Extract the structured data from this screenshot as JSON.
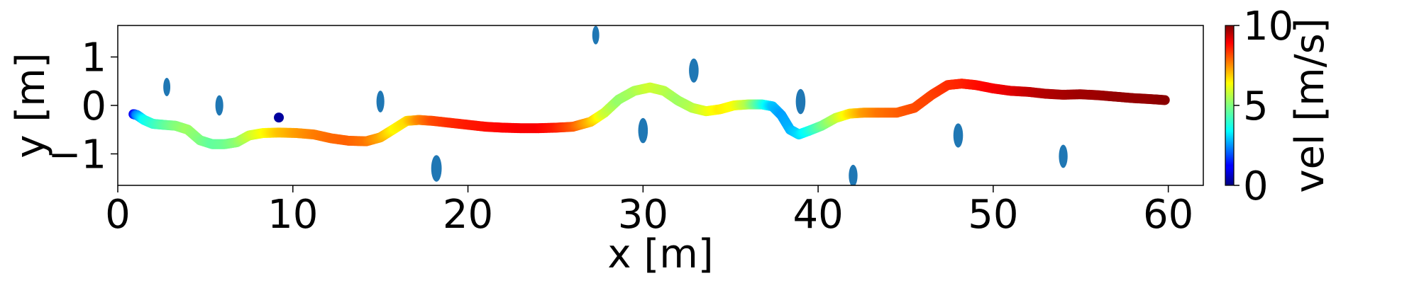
{
  "chart_data": {
    "type": "scatter",
    "xlabel": "x [m]",
    "ylabel": "y [m]",
    "xlim": [
      0,
      62
    ],
    "ylim": [
      -1.65,
      1.65
    ],
    "xticks": [
      0,
      10,
      20,
      30,
      40,
      50,
      60
    ],
    "yticks": [
      -1,
      0,
      1
    ],
    "xtick_labels": [
      "0",
      "10",
      "20",
      "30",
      "40",
      "50",
      "60"
    ],
    "ytick_labels": [
      "−1",
      "0",
      "1"
    ],
    "colorbar": {
      "label": "vel [m/s]",
      "range": [
        0,
        10
      ],
      "ticks": [
        0,
        5,
        10
      ],
      "tick_labels": [
        "0",
        "5",
        "10"
      ],
      "colormap": "jet"
    },
    "trajectory": {
      "x": [
        0.9,
        1.1,
        1.5,
        2.0,
        2.6,
        3.3,
        4.0,
        4.7,
        5.4,
        6.1,
        6.8,
        7.5,
        8.3,
        9.2,
        10.2,
        11.2,
        12.2,
        13.2,
        14.2,
        15.0,
        15.8,
        16.5,
        17.2,
        18.0,
        19.0,
        20.0,
        21.0,
        22.0,
        23.0,
        24.0,
        25.0,
        26.0,
        27.0,
        27.8,
        28.6,
        29.5,
        30.4,
        31.2,
        32.0,
        32.8,
        33.6,
        34.4,
        35.2,
        36.0,
        36.8,
        37.4,
        37.9,
        38.4,
        38.9,
        39.5,
        40.2,
        41.0,
        41.8,
        42.6,
        43.5,
        44.5,
        45.5,
        46.5,
        47.4,
        48.2,
        49.0,
        50.0,
        51.0,
        52.0,
        53.0,
        54.0,
        55.0,
        56.0,
        57.0,
        58.0,
        59.0,
        59.8
      ],
      "y": [
        -0.18,
        -0.2,
        -0.3,
        -0.38,
        -0.4,
        -0.42,
        -0.5,
        -0.72,
        -0.8,
        -0.8,
        -0.76,
        -0.62,
        -0.57,
        -0.56,
        -0.57,
        -0.6,
        -0.68,
        -0.73,
        -0.74,
        -0.66,
        -0.48,
        -0.32,
        -0.3,
        -0.32,
        -0.36,
        -0.4,
        -0.44,
        -0.46,
        -0.47,
        -0.47,
        -0.46,
        -0.44,
        -0.34,
        -0.15,
        0.12,
        0.3,
        0.37,
        0.3,
        0.1,
        -0.05,
        -0.12,
        -0.08,
        0.0,
        0.02,
        0.02,
        -0.02,
        -0.2,
        -0.5,
        -0.6,
        -0.52,
        -0.42,
        -0.26,
        -0.17,
        -0.15,
        -0.15,
        -0.15,
        -0.05,
        0.22,
        0.42,
        0.45,
        0.42,
        0.35,
        0.3,
        0.28,
        0.24,
        0.22,
        0.23,
        0.21,
        0.18,
        0.15,
        0.13,
        0.11
      ],
      "vel": [
        1.0,
        2.5,
        3.8,
        4.2,
        4.6,
        5.0,
        5.3,
        5.0,
        4.7,
        4.8,
        5.1,
        5.7,
        6.2,
        6.8,
        7.2,
        7.5,
        7.7,
        7.8,
        7.6,
        7.1,
        6.3,
        6.6,
        7.4,
        8.0,
        8.3,
        8.5,
        8.6,
        8.7,
        8.8,
        8.8,
        8.5,
        7.9,
        6.9,
        5.8,
        5.2,
        5.4,
        5.8,
        5.6,
        5.3,
        5.5,
        6.0,
        6.4,
        6.2,
        5.5,
        4.2,
        3.2,
        2.8,
        3.0,
        3.4,
        4.0,
        4.8,
        5.6,
        6.5,
        7.2,
        7.6,
        7.8,
        8.0,
        8.1,
        8.3,
        8.4,
        8.6,
        8.8,
        9.0,
        9.3,
        9.5,
        9.6,
        9.7,
        9.7,
        9.8,
        9.8,
        9.8,
        9.9
      ]
    },
    "robot_marker": {
      "x": 9.2,
      "y": -0.25,
      "vel": 0.3
    },
    "obstacles": [
      {
        "x": 2.8,
        "y": 0.38,
        "w": 0.4,
        "h": 0.38
      },
      {
        "x": 5.8,
        "y": 0.0,
        "w": 0.45,
        "h": 0.42
      },
      {
        "x": 15.0,
        "y": 0.08,
        "w": 0.45,
        "h": 0.45
      },
      {
        "x": 18.2,
        "y": -1.3,
        "w": 0.6,
        "h": 0.55
      },
      {
        "x": 27.3,
        "y": 1.45,
        "w": 0.4,
        "h": 0.38
      },
      {
        "x": 30.0,
        "y": -0.52,
        "w": 0.55,
        "h": 0.52
      },
      {
        "x": 32.9,
        "y": 0.72,
        "w": 0.55,
        "h": 0.5
      },
      {
        "x": 39.0,
        "y": 0.08,
        "w": 0.55,
        "h": 0.52
      },
      {
        "x": 42.0,
        "y": -1.45,
        "w": 0.5,
        "h": 0.45
      },
      {
        "x": 48.0,
        "y": -0.62,
        "w": 0.55,
        "h": 0.5
      },
      {
        "x": 54.0,
        "y": -1.05,
        "w": 0.5,
        "h": 0.48
      }
    ],
    "obstacle_color": "#1f77b4",
    "grid": false
  }
}
